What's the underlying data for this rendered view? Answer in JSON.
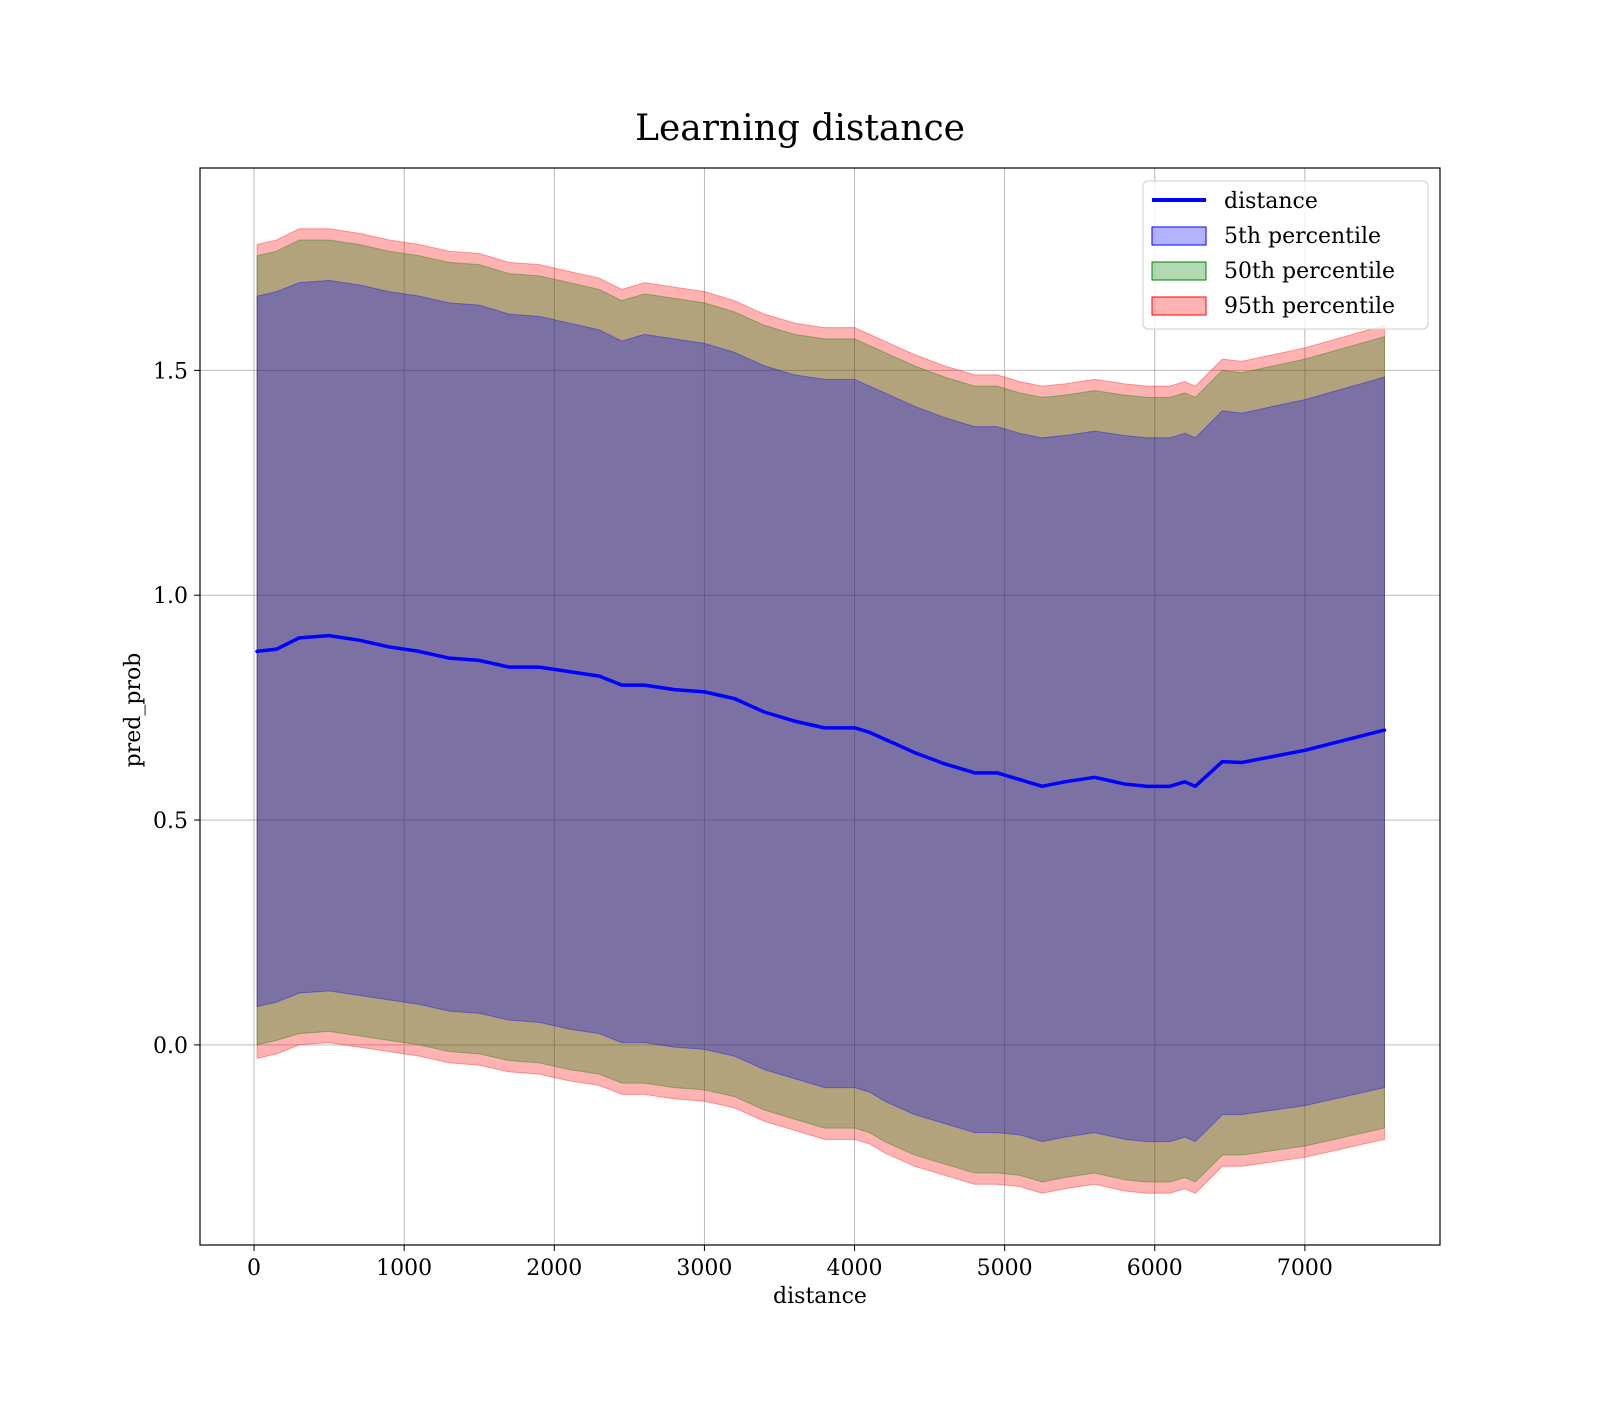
{
  "chart_data": {
    "type": "line",
    "title": "Learning distance",
    "xlabel": "distance",
    "ylabel": "pred_prob",
    "xlim": [
      -360,
      7900
    ],
    "ylim": [
      -0.445,
      1.95
    ],
    "grid": true,
    "legend_placement": "top-right",
    "xticks": [
      0,
      1000,
      2000,
      3000,
      4000,
      5000,
      6000,
      7000
    ],
    "xtick_labels": [
      "0",
      "1000",
      "2000",
      "3000",
      "4000",
      "5000",
      "6000",
      "7000"
    ],
    "yticks": [
      0.0,
      0.5,
      1.0,
      1.5
    ],
    "ytick_labels": [
      "0.0",
      "0.5",
      "1.0",
      "1.5"
    ],
    "legend": [
      "distance",
      "5th percentile",
      "50th percentile",
      "95th percentile"
    ],
    "colors": {
      "line": "#0000ff",
      "p5_fill": "#0000ff",
      "p50_fill": "#008000",
      "p95_fill": "#ff0000"
    },
    "x": [
      20,
      150,
      300,
      500,
      700,
      900,
      1100,
      1300,
      1500,
      1700,
      1900,
      2100,
      2300,
      2450,
      2600,
      2800,
      3000,
      3200,
      3400,
      3600,
      3800,
      4000,
      4100,
      4200,
      4400,
      4600,
      4800,
      4950,
      5100,
      5250,
      5400,
      5600,
      5800,
      5950,
      6100,
      6200,
      6270,
      6450,
      6580,
      7000,
      7530
    ],
    "series": [
      {
        "name": "distance",
        "values": [
          0.875,
          0.88,
          0.905,
          0.91,
          0.9,
          0.885,
          0.875,
          0.86,
          0.855,
          0.84,
          0.84,
          0.83,
          0.82,
          0.8,
          0.8,
          0.79,
          0.785,
          0.77,
          0.74,
          0.72,
          0.705,
          0.705,
          0.695,
          0.68,
          0.65,
          0.625,
          0.605,
          0.605,
          0.59,
          0.575,
          0.585,
          0.595,
          0.58,
          0.575,
          0.575,
          0.585,
          0.575,
          0.63,
          0.628,
          0.655,
          0.7
        ]
      }
    ],
    "bands": [
      {
        "name": "95th percentile",
        "upper": [
          1.78,
          1.79,
          1.815,
          1.815,
          1.805,
          1.79,
          1.78,
          1.765,
          1.76,
          1.74,
          1.735,
          1.72,
          1.705,
          1.68,
          1.695,
          1.685,
          1.675,
          1.655,
          1.625,
          1.605,
          1.595,
          1.595,
          1.58,
          1.565,
          1.535,
          1.51,
          1.49,
          1.49,
          1.475,
          1.465,
          1.47,
          1.48,
          1.47,
          1.465,
          1.465,
          1.475,
          1.465,
          1.525,
          1.52,
          1.55,
          1.6
        ],
        "lower": [
          -0.03,
          -0.02,
          0.0,
          0.005,
          -0.005,
          -0.015,
          -0.025,
          -0.04,
          -0.045,
          -0.06,
          -0.065,
          -0.08,
          -0.09,
          -0.11,
          -0.11,
          -0.12,
          -0.125,
          -0.14,
          -0.17,
          -0.19,
          -0.21,
          -0.21,
          -0.22,
          -0.24,
          -0.27,
          -0.29,
          -0.31,
          -0.31,
          -0.315,
          -0.33,
          -0.32,
          -0.31,
          -0.325,
          -0.33,
          -0.33,
          -0.32,
          -0.33,
          -0.27,
          -0.27,
          -0.25,
          -0.21
        ]
      },
      {
        "name": "50th percentile",
        "upper": [
          1.755,
          1.765,
          1.79,
          1.79,
          1.78,
          1.765,
          1.755,
          1.74,
          1.735,
          1.715,
          1.71,
          1.695,
          1.68,
          1.655,
          1.67,
          1.66,
          1.65,
          1.63,
          1.6,
          1.58,
          1.57,
          1.57,
          1.555,
          1.54,
          1.51,
          1.485,
          1.465,
          1.465,
          1.45,
          1.44,
          1.445,
          1.455,
          1.445,
          1.44,
          1.44,
          1.45,
          1.44,
          1.5,
          1.495,
          1.525,
          1.575
        ],
        "lower": [
          0.0,
          0.01,
          0.025,
          0.03,
          0.02,
          0.01,
          0.0,
          -0.015,
          -0.02,
          -0.035,
          -0.04,
          -0.055,
          -0.065,
          -0.085,
          -0.085,
          -0.095,
          -0.1,
          -0.115,
          -0.145,
          -0.165,
          -0.185,
          -0.185,
          -0.195,
          -0.215,
          -0.245,
          -0.265,
          -0.285,
          -0.285,
          -0.29,
          -0.305,
          -0.295,
          -0.285,
          -0.3,
          -0.305,
          -0.305,
          -0.295,
          -0.305,
          -0.245,
          -0.245,
          -0.225,
          -0.185
        ]
      },
      {
        "name": "5th percentile",
        "upper": [
          1.665,
          1.675,
          1.695,
          1.7,
          1.69,
          1.675,
          1.665,
          1.65,
          1.645,
          1.625,
          1.62,
          1.605,
          1.59,
          1.565,
          1.58,
          1.57,
          1.56,
          1.54,
          1.51,
          1.49,
          1.48,
          1.48,
          1.465,
          1.45,
          1.42,
          1.395,
          1.375,
          1.375,
          1.36,
          1.35,
          1.355,
          1.365,
          1.355,
          1.35,
          1.35,
          1.36,
          1.35,
          1.41,
          1.405,
          1.435,
          1.485
        ],
        "lower": [
          0.085,
          0.095,
          0.115,
          0.12,
          0.11,
          0.1,
          0.09,
          0.075,
          0.07,
          0.055,
          0.05,
          0.035,
          0.025,
          0.005,
          0.005,
          -0.005,
          -0.01,
          -0.025,
          -0.055,
          -0.075,
          -0.095,
          -0.095,
          -0.105,
          -0.125,
          -0.155,
          -0.175,
          -0.195,
          -0.195,
          -0.2,
          -0.215,
          -0.205,
          -0.195,
          -0.21,
          -0.215,
          -0.215,
          -0.205,
          -0.215,
          -0.155,
          -0.155,
          -0.135,
          -0.095
        ]
      }
    ]
  }
}
